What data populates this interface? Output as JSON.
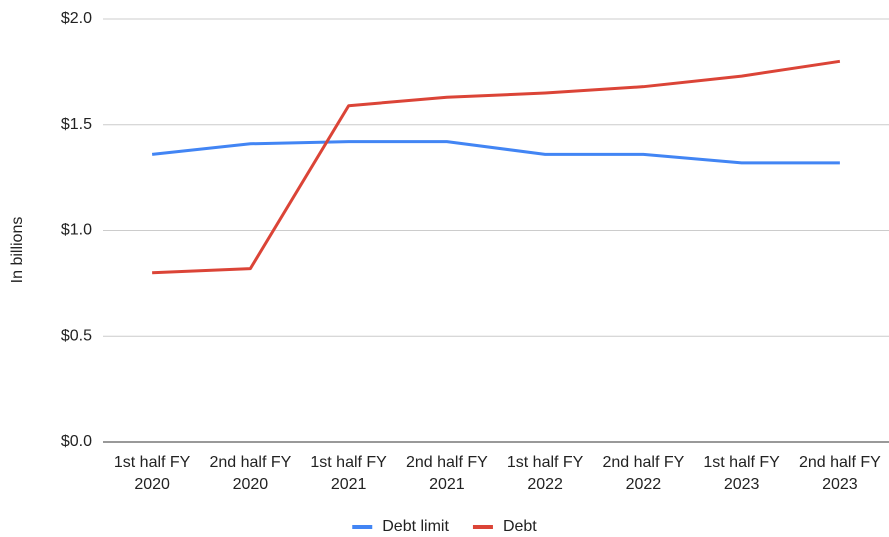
{
  "chart_data": {
    "type": "line",
    "y_label": "In billions",
    "categories": [
      "1st half FY 2020",
      "2nd half FY 2020",
      "1st half FY 2021",
      "2nd half FY 2021",
      "1st half FY 2022",
      "2nd half FY 2022",
      "1st half FY 2023",
      "2nd half FY 2023"
    ],
    "series": [
      {
        "name": "Debt limit",
        "color": "#4285f4",
        "values": [
          1.36,
          1.41,
          1.42,
          1.42,
          1.36,
          1.36,
          1.32,
          1.32
        ]
      },
      {
        "name": "Debt",
        "color": "#db4437",
        "values": [
          0.8,
          0.82,
          1.59,
          1.63,
          1.65,
          1.68,
          1.73,
          1.8
        ]
      }
    ],
    "ylim": [
      0,
      2
    ],
    "yticks": [
      {
        "value": 0,
        "label": "$0.0"
      },
      {
        "value": 0.5,
        "label": "$0.5"
      },
      {
        "value": 1,
        "label": "$1.0"
      },
      {
        "value": 1.5,
        "label": "$1.5"
      },
      {
        "value": 2,
        "label": "$2.0"
      }
    ],
    "grid": true,
    "legend": "bottom"
  }
}
